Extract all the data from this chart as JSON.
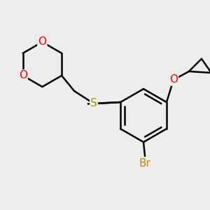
{
  "background_color": "#EDEDED",
  "bond_color": "#000000",
  "bond_width": 1.8,
  "S_color": "#999900",
  "O_color": "#FF0000",
  "Br_color": "#CC8800",
  "figsize": [
    3.0,
    3.0
  ],
  "dpi": 100,
  "xlim": [
    0.0,
    3.0
  ],
  "ylim": [
    0.0,
    3.0
  ]
}
